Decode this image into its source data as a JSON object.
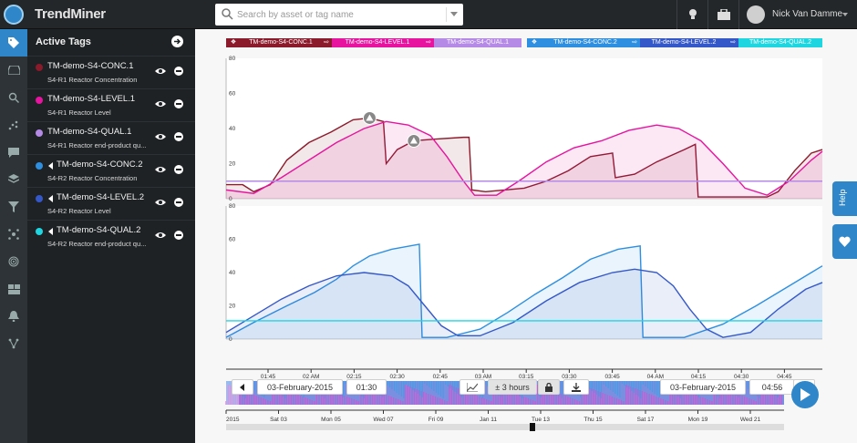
{
  "app": {
    "name": "TrendMiner"
  },
  "search": {
    "placeholder": "Search by asset or tag name"
  },
  "user": {
    "name": "Nick Van Damme"
  },
  "panel": {
    "title": "Active Tags"
  },
  "tags": [
    {
      "name": "TM-demo-S4-CONC.1",
      "desc": "S4-R1 Reactor Concentration",
      "color": "#8b1a2b",
      "reversed": false
    },
    {
      "name": "TM-demo-S4-LEVEL.1",
      "desc": "S4-R1 Reactor Level",
      "color": "#e6149e",
      "reversed": false
    },
    {
      "name": "TM-demo-S4-QUAL.1",
      "desc": "S4-R1 Reactor end-product qu...",
      "color": "#b58ae6",
      "reversed": false
    },
    {
      "name": "TM-demo-S4-CONC.2",
      "desc": "S4-R2 Reactor Concentration",
      "color": "#2e8fe0",
      "reversed": true
    },
    {
      "name": "TM-demo-S4-LEVEL.2",
      "desc": "S4-R2 Reactor Level",
      "color": "#3558c8",
      "reversed": true
    },
    {
      "name": "TM-demo-S4-QUAL.2",
      "desc": "S4-R2 Reactor end-product qu...",
      "color": "#1fd6e0",
      "reversed": true
    }
  ],
  "legend": {
    "group1": [
      "TM-demo-S4-CONC.1",
      "TM-demo-S4-LEVEL.1",
      "TM-demo-S4-QUAL.1"
    ],
    "group2": [
      "TM-demo-S4-CONC.2",
      "TM-demo-S4-LEVEL.2",
      "TM-demo-S4-QUAL.2"
    ]
  },
  "controls": {
    "start_date": "03-February-2015",
    "start_time": "01:30",
    "range": "± 3 hours",
    "end_date": "03-February-2015",
    "end_time": "04:56"
  },
  "side_tabs": {
    "help": "Help"
  },
  "chart_data": [
    {
      "type": "line",
      "panel": "top",
      "ylim": [
        0,
        80
      ],
      "yticks": [
        "80",
        "60",
        "40",
        "20",
        "0"
      ],
      "series": [
        {
          "name": "TM-demo-S4-CONC.1",
          "color": "#8b1a2b",
          "points": [
            [
              0,
              8
            ],
            [
              6,
              8
            ],
            [
              10,
              4
            ],
            [
              16,
              8
            ],
            [
              22,
              22
            ],
            [
              30,
              32
            ],
            [
              38,
              38
            ],
            [
              46,
              45
            ],
            [
              52,
              46
            ],
            [
              57,
              44
            ],
            [
              58,
              20
            ],
            [
              62,
              28
            ],
            [
              68,
              33
            ],
            [
              76,
              34
            ],
            [
              86,
              35
            ],
            [
              88,
              35
            ],
            [
              89,
              5
            ],
            [
              94,
              4
            ],
            [
              108,
              6
            ],
            [
              116,
              10
            ],
            [
              124,
              16
            ],
            [
              132,
              24
            ],
            [
              140,
              26
            ],
            [
              141,
              12
            ],
            [
              148,
              14
            ],
            [
              156,
              21
            ],
            [
              166,
              28
            ],
            [
              170,
              31
            ],
            [
              171,
              1
            ],
            [
              178,
              1
            ],
            [
              196,
              1
            ],
            [
              200,
              4
            ],
            [
              206,
              16
            ],
            [
              212,
              26
            ],
            [
              216,
              28
            ]
          ]
        },
        {
          "name": "TM-demo-S4-LEVEL.1",
          "color": "#e6149e",
          "points": [
            [
              0,
              5
            ],
            [
              10,
              3
            ],
            [
              20,
              12
            ],
            [
              30,
              22
            ],
            [
              40,
              32
            ],
            [
              50,
              40
            ],
            [
              58,
              44
            ],
            [
              66,
              42
            ],
            [
              74,
              36
            ],
            [
              80,
              24
            ],
            [
              86,
              10
            ],
            [
              90,
              2
            ],
            [
              98,
              2
            ],
            [
              106,
              10
            ],
            [
              116,
              21
            ],
            [
              126,
              29
            ],
            [
              136,
              33
            ],
            [
              146,
              39
            ],
            [
              156,
              42
            ],
            [
              164,
              40
            ],
            [
              172,
              33
            ],
            [
              180,
              20
            ],
            [
              188,
              6
            ],
            [
              196,
              2
            ],
            [
              204,
              10
            ],
            [
              212,
              22
            ],
            [
              216,
              27
            ]
          ]
        },
        {
          "name": "TM-demo-S4-QUAL.1",
          "color": "#b58ae6",
          "points": [
            [
              0,
              10
            ],
            [
              216,
              10
            ]
          ]
        }
      ]
    },
    {
      "type": "line",
      "panel": "bottom",
      "ylim": [
        0,
        80
      ],
      "yticks": [
        "80",
        "60",
        "40",
        "20",
        "0"
      ],
      "series": [
        {
          "name": "TM-demo-S4-CONC.2",
          "color": "#2e8fe0",
          "points": [
            [
              0,
              1
            ],
            [
              10,
              10
            ],
            [
              22,
              20
            ],
            [
              32,
              28
            ],
            [
              40,
              36
            ],
            [
              46,
              44
            ],
            [
              52,
              50
            ],
            [
              60,
              54
            ],
            [
              70,
              57
            ],
            [
              71,
              1
            ],
            [
              80,
              1
            ],
            [
              92,
              6
            ],
            [
              102,
              16
            ],
            [
              112,
              27
            ],
            [
              122,
              37
            ],
            [
              132,
              48
            ],
            [
              142,
              54
            ],
            [
              150,
              56
            ],
            [
              151,
              1
            ],
            [
              166,
              1
            ],
            [
              180,
              9
            ],
            [
              192,
              20
            ],
            [
              204,
              32
            ],
            [
              212,
              40
            ],
            [
              216,
              44
            ]
          ]
        },
        {
          "name": "TM-demo-S4-LEVEL.2",
          "color": "#3558c8",
          "points": [
            [
              0,
              4
            ],
            [
              10,
              14
            ],
            [
              20,
              24
            ],
            [
              30,
              32
            ],
            [
              40,
              38
            ],
            [
              50,
              40
            ],
            [
              60,
              38
            ],
            [
              66,
              32
            ],
            [
              72,
              20
            ],
            [
              78,
              8
            ],
            [
              84,
              2
            ],
            [
              92,
              2
            ],
            [
              104,
              10
            ],
            [
              116,
              23
            ],
            [
              128,
              34
            ],
            [
              140,
              40
            ],
            [
              148,
              42
            ],
            [
              156,
              40
            ],
            [
              162,
              32
            ],
            [
              168,
              18
            ],
            [
              174,
              6
            ],
            [
              180,
              1
            ],
            [
              190,
              4
            ],
            [
              200,
              18
            ],
            [
              210,
              30
            ],
            [
              216,
              34
            ]
          ]
        },
        {
          "name": "TM-demo-S4-QUAL.2",
          "color": "#1fd6e0",
          "points": [
            [
              0,
              11
            ],
            [
              216,
              11
            ]
          ]
        }
      ]
    },
    {
      "type": "timeline",
      "panel": "navigator",
      "top_ticks": [
        "01:45",
        "02 AM",
        "02:15",
        "02:30",
        "02:45",
        "03 AM",
        "03:15",
        "03:30",
        "03:45",
        "04 AM",
        "04:15",
        "04:30",
        "04:45"
      ],
      "bottom_ticks": [
        "2015",
        "Sat 03",
        "Mon 05",
        "Wed 07",
        "Fri 09",
        "Jan 11",
        "Tue 13",
        "Thu 15",
        "Sat 17",
        "Mon 19",
        "Wed 21"
      ]
    }
  ]
}
